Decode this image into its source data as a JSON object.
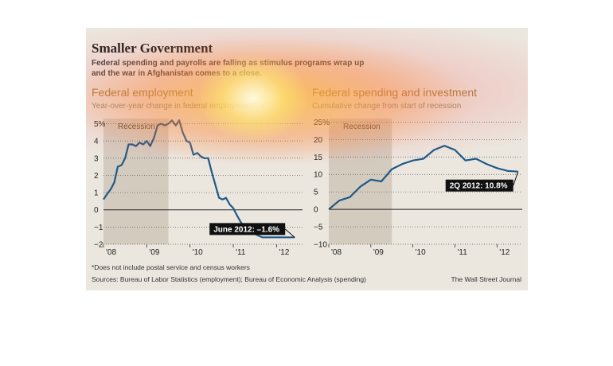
{
  "header": {
    "title": "Smaller Government",
    "subtitle_line1": "Federal spending and payrolls are falling as stimulus programs wrap up",
    "subtitle_line2": "and the war in Afghanistan comes to a close."
  },
  "footer": {
    "footnote": "*Does not include postal service and census workers",
    "sources": "Sources: Bureau of Labor Statistics (employment); Bureau of Economic Analysis (spending)",
    "credit": "The Wall Street Journal"
  },
  "colors": {
    "line": "#1f5a87",
    "recession": "#d4cbbf",
    "background": "#ebe7df",
    "title_accent": "#a8823c"
  },
  "chart_data": [
    {
      "type": "line",
      "title": "Federal employment",
      "subtitle": "Year-over-year change in federal employment*",
      "ylim": [
        -2,
        5.3
      ],
      "y_ticks": [
        5,
        4,
        3,
        2,
        1,
        0,
        -1,
        -2
      ],
      "y_tick_labels": [
        "5%",
        "4",
        "3",
        "2",
        "1",
        "0",
        "−1",
        "−2"
      ],
      "xlim": [
        2008,
        2012.6
      ],
      "x_ticks": [
        2008,
        2009,
        2010,
        2011,
        2012
      ],
      "x_tick_labels": [
        "'08",
        "'09",
        "'10",
        "'11",
        "'12"
      ],
      "grid": true,
      "recession": {
        "label": "Recession",
        "start": 2008,
        "end": 2009.5
      },
      "annotation": "June 2012: –1.6%",
      "series": [
        {
          "x": [
            2008.0,
            2008.08,
            2008.17,
            2008.25,
            2008.33,
            2008.42,
            2008.5,
            2008.58,
            2008.67,
            2008.75,
            2008.83,
            2008.92,
            2009.0,
            2009.08,
            2009.17,
            2009.25,
            2009.33,
            2009.42,
            2009.5,
            2009.58,
            2009.67,
            2009.75,
            2009.83,
            2009.92,
            2010.0,
            2010.08,
            2010.17,
            2010.25,
            2010.33,
            2010.42,
            2010.5,
            2010.58,
            2010.67,
            2010.75,
            2010.83,
            2010.92,
            2011.0,
            2011.08,
            2011.17,
            2011.25,
            2011.33,
            2011.42,
            2011.5,
            2011.58,
            2011.67,
            2011.75,
            2011.83,
            2011.92,
            2012.0,
            2012.08,
            2012.17,
            2012.25,
            2012.33,
            2012.42
          ],
          "values": [
            0.6,
            0.9,
            1.2,
            1.6,
            2.5,
            2.6,
            3.0,
            3.8,
            3.8,
            3.7,
            3.9,
            3.8,
            4.0,
            3.7,
            4.2,
            4.9,
            5.0,
            4.9,
            5.0,
            5.2,
            4.9,
            5.2,
            4.5,
            4.0,
            3.9,
            3.2,
            3.3,
            3.1,
            3.0,
            3.0,
            2.2,
            1.5,
            0.7,
            0.6,
            0.7,
            0.3,
            0.1,
            -0.3,
            -0.7,
            -1.0,
            -1.2,
            -1.3,
            -1.4,
            -1.5,
            -1.6,
            -1.6,
            -1.6,
            -1.6,
            -1.6,
            -1.6,
            -1.6,
            -1.6,
            -1.6,
            -1.6
          ]
        }
      ]
    },
    {
      "type": "line",
      "title": "Federal spending and investment",
      "subtitle": "Cumulative change from start of recession",
      "ylim": [
        -10,
        26
      ],
      "y_ticks": [
        25,
        20,
        15,
        10,
        5,
        0,
        -5,
        -10
      ],
      "y_tick_labels": [
        "25%",
        "20",
        "15",
        "10",
        "5",
        "0",
        "−5",
        "−10"
      ],
      "xlim": [
        2008,
        2012.6
      ],
      "x_ticks": [
        2008,
        2009,
        2010,
        2011,
        2012
      ],
      "x_tick_labels": [
        "'08",
        "'09",
        "'10",
        "'11",
        "'12"
      ],
      "grid": true,
      "recession": {
        "label": "Recession",
        "start": 2008,
        "end": 2009.5
      },
      "annotation": "2Q 2012: 10.8%",
      "series": [
        {
          "x": [
            2008.0,
            2008.25,
            2008.5,
            2008.75,
            2009.0,
            2009.25,
            2009.5,
            2009.75,
            2010.0,
            2010.25,
            2010.5,
            2010.75,
            2011.0,
            2011.25,
            2011.5,
            2011.75,
            2012.0,
            2012.25,
            2012.5
          ],
          "values": [
            0,
            2.5,
            3.5,
            6.5,
            8.5,
            8.0,
            11.5,
            13.0,
            14.0,
            14.5,
            17.0,
            18.2,
            17.0,
            14.0,
            14.5,
            13.0,
            11.8,
            11.0,
            10.8
          ]
        }
      ]
    }
  ]
}
